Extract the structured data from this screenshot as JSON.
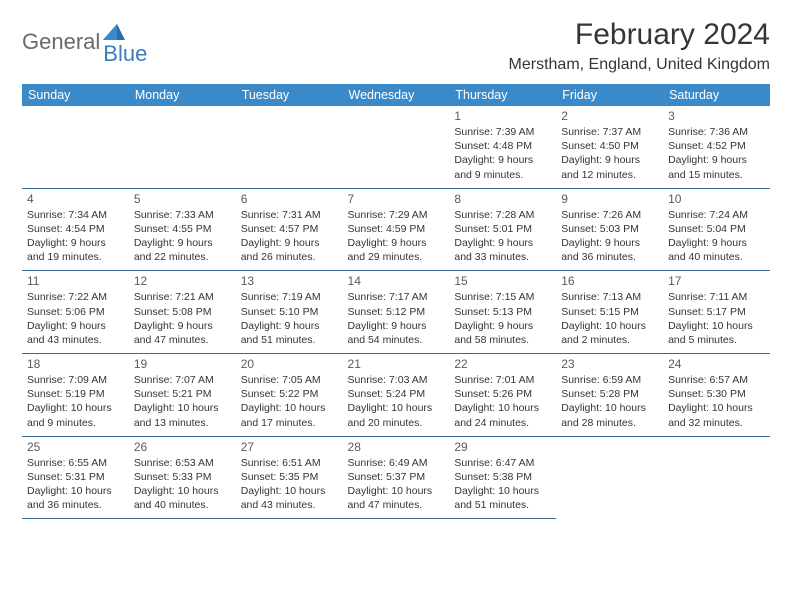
{
  "logo": {
    "part1": "General",
    "part2": "Blue"
  },
  "title": "February 2024",
  "location": "Merstham, England, United Kingdom",
  "header_bg": "#3a8ac9",
  "border_color": "#3a6b95",
  "day_headers": [
    "Sunday",
    "Monday",
    "Tuesday",
    "Wednesday",
    "Thursday",
    "Friday",
    "Saturday"
  ],
  "weeks": [
    [
      null,
      null,
      null,
      null,
      {
        "n": "1",
        "sr": "Sunrise: 7:39 AM",
        "ss": "Sunset: 4:48 PM",
        "dl1": "Daylight: 9 hours",
        "dl2": "and 9 minutes."
      },
      {
        "n": "2",
        "sr": "Sunrise: 7:37 AM",
        "ss": "Sunset: 4:50 PM",
        "dl1": "Daylight: 9 hours",
        "dl2": "and 12 minutes."
      },
      {
        "n": "3",
        "sr": "Sunrise: 7:36 AM",
        "ss": "Sunset: 4:52 PM",
        "dl1": "Daylight: 9 hours",
        "dl2": "and 15 minutes."
      }
    ],
    [
      {
        "n": "4",
        "sr": "Sunrise: 7:34 AM",
        "ss": "Sunset: 4:54 PM",
        "dl1": "Daylight: 9 hours",
        "dl2": "and 19 minutes."
      },
      {
        "n": "5",
        "sr": "Sunrise: 7:33 AM",
        "ss": "Sunset: 4:55 PM",
        "dl1": "Daylight: 9 hours",
        "dl2": "and 22 minutes."
      },
      {
        "n": "6",
        "sr": "Sunrise: 7:31 AM",
        "ss": "Sunset: 4:57 PM",
        "dl1": "Daylight: 9 hours",
        "dl2": "and 26 minutes."
      },
      {
        "n": "7",
        "sr": "Sunrise: 7:29 AM",
        "ss": "Sunset: 4:59 PM",
        "dl1": "Daylight: 9 hours",
        "dl2": "and 29 minutes."
      },
      {
        "n": "8",
        "sr": "Sunrise: 7:28 AM",
        "ss": "Sunset: 5:01 PM",
        "dl1": "Daylight: 9 hours",
        "dl2": "and 33 minutes."
      },
      {
        "n": "9",
        "sr": "Sunrise: 7:26 AM",
        "ss": "Sunset: 5:03 PM",
        "dl1": "Daylight: 9 hours",
        "dl2": "and 36 minutes."
      },
      {
        "n": "10",
        "sr": "Sunrise: 7:24 AM",
        "ss": "Sunset: 5:04 PM",
        "dl1": "Daylight: 9 hours",
        "dl2": "and 40 minutes."
      }
    ],
    [
      {
        "n": "11",
        "sr": "Sunrise: 7:22 AM",
        "ss": "Sunset: 5:06 PM",
        "dl1": "Daylight: 9 hours",
        "dl2": "and 43 minutes."
      },
      {
        "n": "12",
        "sr": "Sunrise: 7:21 AM",
        "ss": "Sunset: 5:08 PM",
        "dl1": "Daylight: 9 hours",
        "dl2": "and 47 minutes."
      },
      {
        "n": "13",
        "sr": "Sunrise: 7:19 AM",
        "ss": "Sunset: 5:10 PM",
        "dl1": "Daylight: 9 hours",
        "dl2": "and 51 minutes."
      },
      {
        "n": "14",
        "sr": "Sunrise: 7:17 AM",
        "ss": "Sunset: 5:12 PM",
        "dl1": "Daylight: 9 hours",
        "dl2": "and 54 minutes."
      },
      {
        "n": "15",
        "sr": "Sunrise: 7:15 AM",
        "ss": "Sunset: 5:13 PM",
        "dl1": "Daylight: 9 hours",
        "dl2": "and 58 minutes."
      },
      {
        "n": "16",
        "sr": "Sunrise: 7:13 AM",
        "ss": "Sunset: 5:15 PM",
        "dl1": "Daylight: 10 hours",
        "dl2": "and 2 minutes."
      },
      {
        "n": "17",
        "sr": "Sunrise: 7:11 AM",
        "ss": "Sunset: 5:17 PM",
        "dl1": "Daylight: 10 hours",
        "dl2": "and 5 minutes."
      }
    ],
    [
      {
        "n": "18",
        "sr": "Sunrise: 7:09 AM",
        "ss": "Sunset: 5:19 PM",
        "dl1": "Daylight: 10 hours",
        "dl2": "and 9 minutes."
      },
      {
        "n": "19",
        "sr": "Sunrise: 7:07 AM",
        "ss": "Sunset: 5:21 PM",
        "dl1": "Daylight: 10 hours",
        "dl2": "and 13 minutes."
      },
      {
        "n": "20",
        "sr": "Sunrise: 7:05 AM",
        "ss": "Sunset: 5:22 PM",
        "dl1": "Daylight: 10 hours",
        "dl2": "and 17 minutes."
      },
      {
        "n": "21",
        "sr": "Sunrise: 7:03 AM",
        "ss": "Sunset: 5:24 PM",
        "dl1": "Daylight: 10 hours",
        "dl2": "and 20 minutes."
      },
      {
        "n": "22",
        "sr": "Sunrise: 7:01 AM",
        "ss": "Sunset: 5:26 PM",
        "dl1": "Daylight: 10 hours",
        "dl2": "and 24 minutes."
      },
      {
        "n": "23",
        "sr": "Sunrise: 6:59 AM",
        "ss": "Sunset: 5:28 PM",
        "dl1": "Daylight: 10 hours",
        "dl2": "and 28 minutes."
      },
      {
        "n": "24",
        "sr": "Sunrise: 6:57 AM",
        "ss": "Sunset: 5:30 PM",
        "dl1": "Daylight: 10 hours",
        "dl2": "and 32 minutes."
      }
    ],
    [
      {
        "n": "25",
        "sr": "Sunrise: 6:55 AM",
        "ss": "Sunset: 5:31 PM",
        "dl1": "Daylight: 10 hours",
        "dl2": "and 36 minutes."
      },
      {
        "n": "26",
        "sr": "Sunrise: 6:53 AM",
        "ss": "Sunset: 5:33 PM",
        "dl1": "Daylight: 10 hours",
        "dl2": "and 40 minutes."
      },
      {
        "n": "27",
        "sr": "Sunrise: 6:51 AM",
        "ss": "Sunset: 5:35 PM",
        "dl1": "Daylight: 10 hours",
        "dl2": "and 43 minutes."
      },
      {
        "n": "28",
        "sr": "Sunrise: 6:49 AM",
        "ss": "Sunset: 5:37 PM",
        "dl1": "Daylight: 10 hours",
        "dl2": "and 47 minutes."
      },
      {
        "n": "29",
        "sr": "Sunrise: 6:47 AM",
        "ss": "Sunset: 5:38 PM",
        "dl1": "Daylight: 10 hours",
        "dl2": "and 51 minutes."
      },
      null,
      null
    ]
  ]
}
